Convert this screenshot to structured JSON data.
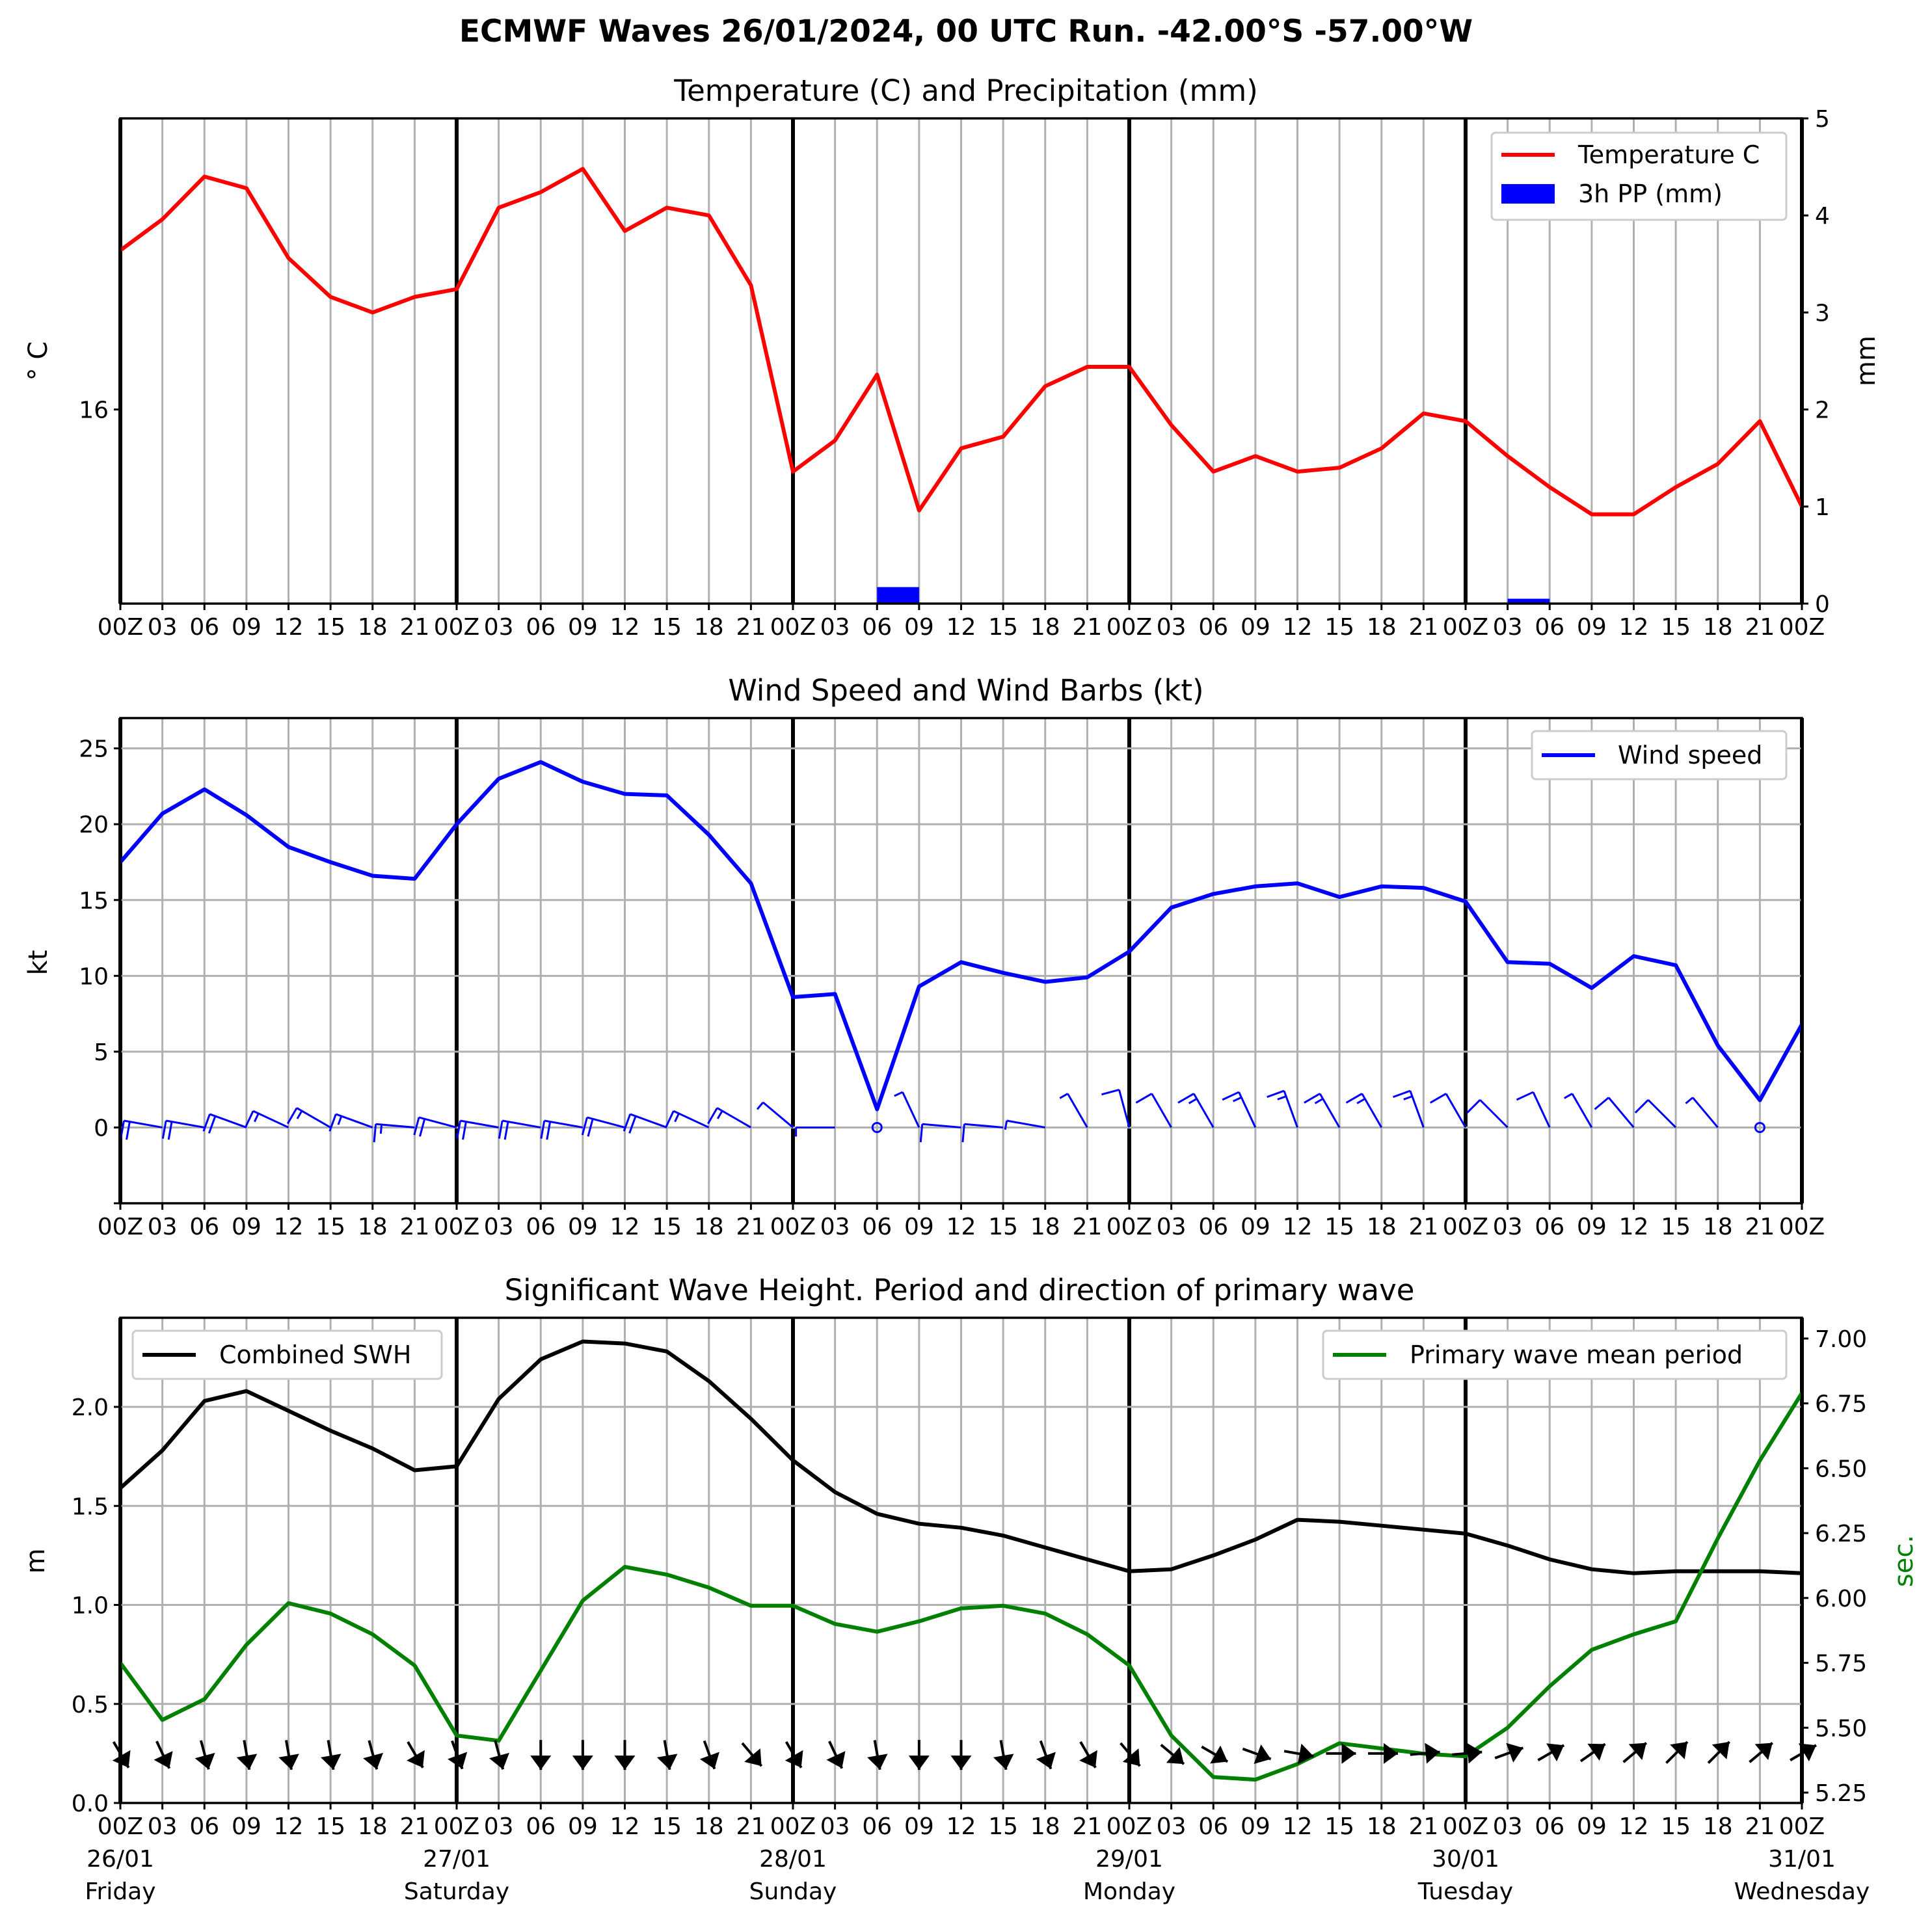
{
  "figure": {
    "title": "ECMWF Waves 26/01/2024, 00 UTC Run. -42.00°S -57.00°W"
  },
  "x_axis": {
    "tick_labels_top": [
      "00Z",
      "03",
      "06",
      "09",
      "12",
      "15",
      "18",
      "21",
      "00Z",
      "03",
      "06",
      "09",
      "12",
      "15",
      "18",
      "21",
      "00Z",
      "03",
      "06",
      "09",
      "12",
      "15",
      "18",
      "21",
      "00Z",
      "03",
      "06",
      "09",
      "12",
      "15",
      "18",
      "21",
      "00Z",
      "03",
      "06",
      "09",
      "12",
      "15",
      "18",
      "21",
      "00Z"
    ],
    "tick_labels_bottom": [
      "00Z",
      "03",
      "06",
      "09",
      "12",
      "15",
      "18",
      "21",
      "00Z",
      "03",
      "06",
      "09",
      "12",
      "15",
      "18",
      "21",
      "00Z",
      "03",
      "06",
      "09",
      "12",
      "15",
      "18",
      "21",
      "00Z",
      "03",
      "06",
      "09",
      "12",
      "15",
      "18",
      "21",
      "00Z",
      "03",
      "06",
      "09",
      "12",
      "15",
      "18",
      "21",
      "00Z"
    ],
    "days": [
      {
        "date": "26/01",
        "weekday": "Friday"
      },
      {
        "date": "27/01",
        "weekday": "Saturday"
      },
      {
        "date": "28/01",
        "weekday": "Sunday"
      },
      {
        "date": "29/01",
        "weekday": "Monday"
      },
      {
        "date": "30/01",
        "weekday": "Tuesday"
      },
      {
        "date": "31/01",
        "weekday": "Wednesday"
      }
    ]
  },
  "colors": {
    "temperature": "#ff0000",
    "precip": "#0000ff",
    "wind": "#0000ff",
    "swh": "#000000",
    "period": "#008000"
  },
  "chart_data": [
    {
      "type": "line",
      "title": "Temperature (C) and Precipitation (mm)",
      "x_hours": [
        0,
        3,
        6,
        9,
        12,
        15,
        18,
        21,
        24,
        27,
        30,
        33,
        36,
        39,
        42,
        45,
        48,
        51,
        54,
        57,
        60,
        63,
        66,
        69,
        72,
        75,
        78,
        81,
        84,
        87,
        90,
        93,
        96,
        99,
        102,
        105,
        108,
        111,
        114,
        117,
        120
      ],
      "ylabel": "° C",
      "y_tick_labels": [
        "16"
      ],
      "y_ticks": [
        16
      ],
      "ylim": [
        15.5,
        16.75
      ],
      "y2label": "mm",
      "y2_ticks": [
        0,
        1,
        2,
        3,
        4,
        5
      ],
      "y2lim": [
        0,
        5
      ],
      "legend_position": "upper right",
      "series": [
        {
          "name": "Temperature C",
          "type": "line",
          "values": [
            16.41,
            16.49,
            16.6,
            16.57,
            16.39,
            16.29,
            16.25,
            16.29,
            16.31,
            16.52,
            16.56,
            16.62,
            16.46,
            16.52,
            16.5,
            16.32,
            15.84,
            15.92,
            16.09,
            15.74,
            15.9,
            15.93,
            16.06,
            16.11,
            16.11,
            15.96,
            15.84,
            15.88,
            15.84,
            15.85,
            15.9,
            15.99,
            15.97,
            15.88,
            15.8,
            15.73,
            15.73,
            15.8,
            15.86,
            15.97,
            15.75
          ]
        },
        {
          "name": "3h PP (mm)",
          "type": "bar",
          "bars": [
            {
              "x_start": 54,
              "x_end": 57,
              "value": 0.17
            },
            {
              "x_start": 99,
              "x_end": 102,
              "value": 0.05
            }
          ]
        }
      ]
    },
    {
      "type": "line",
      "title": "Wind Speed and Wind Barbs (kt)",
      "x_hours": [
        0,
        3,
        6,
        9,
        12,
        15,
        18,
        21,
        24,
        27,
        30,
        33,
        36,
        39,
        42,
        45,
        48,
        51,
        54,
        57,
        60,
        63,
        66,
        69,
        72,
        75,
        78,
        81,
        84,
        87,
        90,
        93,
        96,
        99,
        102,
        105,
        108,
        111,
        114,
        117,
        120
      ],
      "ylabel": "kt",
      "y_ticks": [
        0,
        5,
        10,
        15,
        20,
        25
      ],
      "ylim": [
        -5,
        27
      ],
      "legend_position": "upper right",
      "series": [
        {
          "name": "Wind speed",
          "values": [
            17.5,
            20.7,
            22.3,
            20.6,
            18.5,
            17.5,
            16.6,
            16.4,
            20.0,
            23.0,
            24.1,
            22.8,
            22.0,
            21.9,
            19.3,
            16.1,
            8.6,
            8.8,
            1.2,
            9.3,
            10.9,
            10.2,
            9.6,
            9.9,
            11.6,
            14.5,
            15.4,
            15.9,
            16.1,
            15.2,
            15.9,
            15.8,
            14.9,
            10.9,
            10.8,
            9.2,
            11.3,
            10.7,
            5.4,
            1.8,
            6.8
          ]
        }
      ],
      "barbs": {
        "y": 0,
        "x_hours": [
          3,
          6,
          9,
          12,
          15,
          18,
          21,
          24,
          27,
          30,
          33,
          36,
          39,
          42,
          45,
          48,
          51,
          54,
          57,
          60,
          63,
          66,
          69,
          72,
          75,
          78,
          81,
          84,
          87,
          90,
          93,
          96,
          99,
          102,
          105,
          108,
          111,
          114,
          117
        ],
        "direction_deg": [
          280,
          280,
          290,
          295,
          300,
          290,
          275,
          285,
          280,
          280,
          280,
          285,
          290,
          295,
          300,
          310,
          270,
          0,
          335,
          275,
          275,
          280,
          330,
          345,
          330,
          330,
          335,
          340,
          330,
          330,
          340,
          330,
          315,
          335,
          330,
          320,
          315,
          320,
          0
        ]
      }
    },
    {
      "type": "line",
      "title": "Significant Wave Height. Period and direction of primary wave",
      "x_hours": [
        0,
        3,
        6,
        9,
        12,
        15,
        18,
        21,
        24,
        27,
        30,
        33,
        36,
        39,
        42,
        45,
        48,
        51,
        54,
        57,
        60,
        63,
        66,
        69,
        72,
        75,
        78,
        81,
        84,
        87,
        90,
        93,
        96,
        99,
        102,
        105,
        108,
        111,
        114,
        117,
        120
      ],
      "ylabel": "m",
      "y_ticks": [
        0.0,
        0.5,
        1.0,
        1.5,
        2.0
      ],
      "y_tick_labels": [
        "0.0",
        "0.5",
        "1.0",
        "1.5",
        "2.0"
      ],
      "ylim": [
        0.0,
        2.45
      ],
      "y2label": "sec.",
      "y2_ticks": [
        5.25,
        5.5,
        5.75,
        6.0,
        6.25,
        6.5,
        6.75,
        7.0
      ],
      "y2_tick_labels": [
        "5.25",
        "5.50",
        "5.75",
        "6.00",
        "6.25",
        "6.50",
        "6.75",
        "7.00"
      ],
      "y2lim": [
        5.21,
        7.08
      ],
      "series": [
        {
          "name": "Combined SWH",
          "axis": "left",
          "legend_position": "upper left",
          "values": [
            1.59,
            1.78,
            2.03,
            2.08,
            1.98,
            1.88,
            1.79,
            1.68,
            1.7,
            2.04,
            2.24,
            2.33,
            2.32,
            2.28,
            2.13,
            1.94,
            1.73,
            1.57,
            1.46,
            1.41,
            1.39,
            1.35,
            1.29,
            1.23,
            1.17,
            1.18,
            1.25,
            1.33,
            1.43,
            1.42,
            1.4,
            1.38,
            1.36,
            1.3,
            1.23,
            1.18,
            1.16,
            1.17,
            1.17,
            1.17,
            1.16
          ]
        },
        {
          "name": "Primary wave mean period",
          "axis": "right",
          "legend_position": "upper right",
          "values": [
            5.75,
            5.53,
            5.61,
            5.82,
            5.98,
            5.94,
            5.86,
            5.74,
            5.47,
            5.45,
            5.72,
            5.99,
            6.12,
            6.09,
            6.04,
            5.97,
            5.97,
            5.9,
            5.87,
            5.91,
            5.96,
            5.97,
            5.94,
            5.86,
            5.74,
            5.47,
            5.31,
            5.3,
            5.36,
            5.44,
            5.42,
            5.4,
            5.39,
            5.5,
            5.66,
            5.8,
            5.86,
            5.91,
            6.23,
            6.53,
            6.79
          ]
        }
      ],
      "direction_arrows": {
        "y": 0.25,
        "x_hours": [
          0,
          3,
          6,
          9,
          12,
          15,
          18,
          21,
          24,
          27,
          30,
          33,
          36,
          39,
          42,
          45,
          48,
          51,
          54,
          57,
          60,
          63,
          66,
          69,
          72,
          75,
          78,
          81,
          84,
          87,
          90,
          93,
          96,
          99,
          102,
          105,
          108,
          111,
          114,
          117,
          120
        ],
        "direction_deg": [
          330,
          335,
          345,
          350,
          350,
          350,
          345,
          330,
          340,
          345,
          0,
          0,
          0,
          350,
          340,
          320,
          330,
          335,
          350,
          0,
          0,
          350,
          340,
          330,
          320,
          310,
          300,
          290,
          280,
          270,
          270,
          265,
          265,
          250,
          240,
          235,
          230,
          225,
          225,
          230,
          240
        ]
      }
    }
  ]
}
